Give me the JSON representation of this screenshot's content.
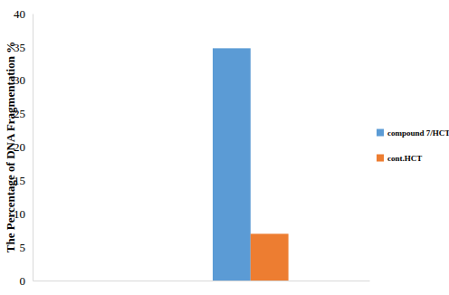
{
  "chart_data": {
    "type": "bar",
    "y_label": "The Percentage of DNA Fragmentation %",
    "categories": [
      null
    ],
    "series": [
      {
        "name": "compound 7/HCT",
        "color": "#5b9bd5",
        "values": [
          34.8
        ]
      },
      {
        "name": "cont.HCT",
        "color": "#ed7d31",
        "values": [
          7.0
        ]
      }
    ],
    "ylim": [
      0,
      40
    ],
    "yticks": [
      0,
      5,
      10,
      15,
      20,
      25,
      30,
      35,
      40
    ],
    "grid": false,
    "legend": "right"
  }
}
